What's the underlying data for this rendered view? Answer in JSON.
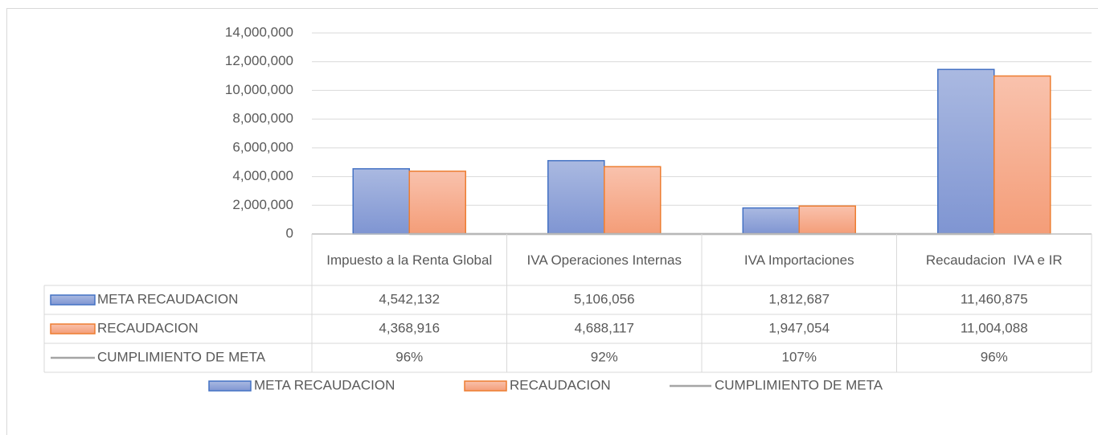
{
  "chart_data": {
    "type": "bar",
    "categories": [
      "Impuesto a la Renta Global",
      "IVA Operaciones Internas",
      "IVA Importaciones",
      "Recaudacion  IVA e IR"
    ],
    "series": [
      {
        "name": "META RECAUDACION",
        "color": "#4472c4",
        "values": [
          4542132,
          5106056,
          1812687,
          11460875
        ],
        "value_labels": [
          "4,542,132",
          "5,106,056",
          "1,812,687",
          "11,460,875"
        ]
      },
      {
        "name": "RECAUDACION",
        "color": "#ed7d31",
        "values": [
          4368916,
          4688117,
          1947054,
          11004088
        ],
        "value_labels": [
          "4,368,916",
          "4,688,117",
          "1,947,054",
          "11,004,088"
        ]
      },
      {
        "name": "CUMPLIMIENTO DE META",
        "type": "line",
        "color": "#a5a5a5",
        "values": [
          96,
          92,
          107,
          96
        ],
        "value_labels": [
          "96%",
          "92%",
          "107%",
          "96%"
        ]
      }
    ],
    "ylim": [
      0,
      14000000
    ],
    "yticks": [
      0,
      {
        "value": 2000000,
        "label": "2,000,000"
      },
      {
        "value": 4000000,
        "label": "4,000,000"
      },
      {
        "value": 6000000,
        "label": "6,000,000"
      },
      {
        "value": 8000000,
        "label": "8,000,000"
      },
      {
        "value": 10000000,
        "label": "10,000,000"
      },
      {
        "value": 12000000,
        "label": "12,000,000"
      },
      {
        "value": 14000000,
        "label": "14,000,000"
      }
    ],
    "grid": true,
    "legend": "bottom",
    "data_table": true
  }
}
